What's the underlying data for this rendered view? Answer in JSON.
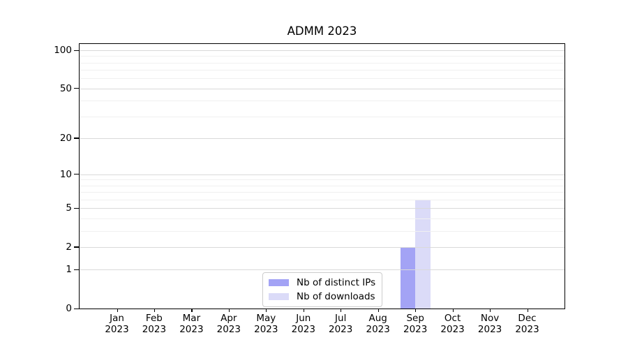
{
  "chart_data": {
    "type": "bar",
    "title": "ADMM 2023",
    "xlabel": "",
    "ylabel": "",
    "categories": [
      "Jan 2023",
      "Feb 2023",
      "Mar 2023",
      "Apr 2023",
      "May 2023",
      "Jun 2023",
      "Jul 2023",
      "Aug 2023",
      "Sep 2023",
      "Oct 2023",
      "Nov 2023",
      "Dec 2023"
    ],
    "series": [
      {
        "name": "Nb of distinct IPs",
        "color": "#a3a3f5",
        "values": [
          0,
          0,
          0,
          0,
          0,
          0,
          0,
          0,
          2,
          0,
          0,
          0
        ]
      },
      {
        "name": "Nb of downloads",
        "color": "#dbdbf8",
        "values": [
          0,
          0,
          0,
          0,
          0,
          0,
          0,
          0,
          6,
          0,
          0,
          0
        ]
      }
    ],
    "yscale": "log10(value+1)",
    "yticks": [
      0,
      1,
      2,
      5,
      10,
      20,
      50,
      100
    ],
    "minor_gridlines": [
      3,
      4,
      6,
      7,
      8,
      9,
      30,
      40,
      60,
      70,
      80,
      90
    ],
    "ylim": [
      0,
      112
    ],
    "grid": true,
    "legend_position": "lower center",
    "colors": {
      "major_grid": "#d9d9d9",
      "minor_grid": "#f0f0f0",
      "axis": "#000000"
    }
  }
}
